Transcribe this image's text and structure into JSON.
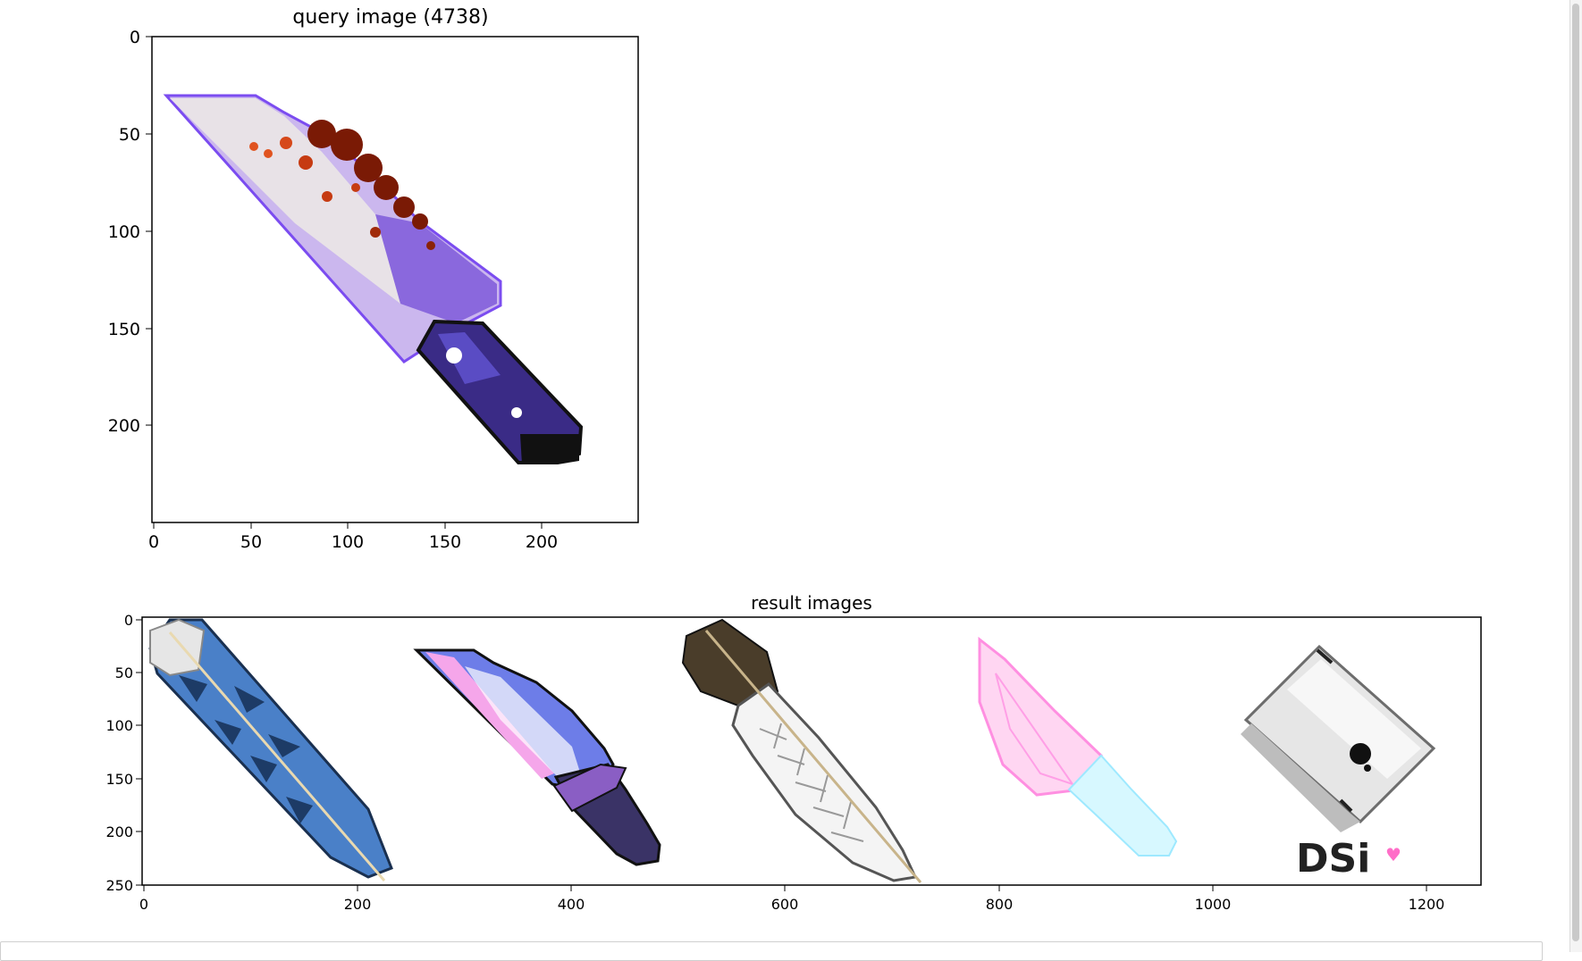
{
  "query_plot": {
    "title": "query image (4738)",
    "x_ticks": [
      "0",
      "50",
      "100",
      "150",
      "200"
    ],
    "y_ticks": [
      "0",
      "50",
      "100",
      "150",
      "200"
    ]
  },
  "result_plot": {
    "title": "result images",
    "x_ticks": [
      "0",
      "200",
      "400",
      "600",
      "800",
      "1000",
      "1200"
    ],
    "y_ticks": [
      "0",
      "50",
      "100",
      "150",
      "200",
      "250"
    ],
    "images": [
      {
        "label": "blue-feather"
      },
      {
        "label": "purple-knife"
      },
      {
        "label": "white-feather"
      },
      {
        "label": "pink-knife"
      },
      {
        "label": "dsi-console",
        "text": "DSi",
        "heart": "♥"
      }
    ]
  },
  "colors": {
    "blade_light": "#e6e0ea",
    "blade_purple": "#8f6fe0",
    "blood": "#7a1a05",
    "handle_dark": "#2a1f66"
  }
}
